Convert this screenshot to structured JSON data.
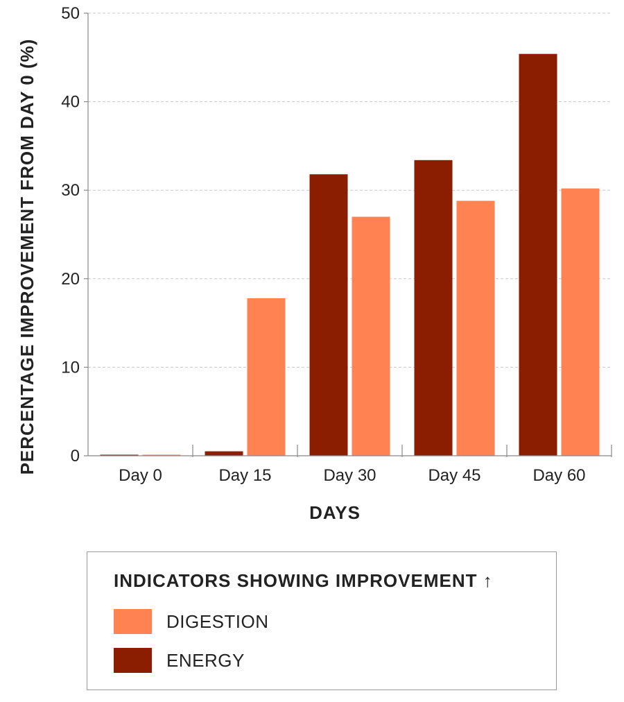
{
  "chart_data": {
    "type": "bar",
    "categories": [
      "Day 0",
      "Day 15",
      "Day 30",
      "Day 45",
      "Day 60"
    ],
    "series": [
      {
        "name": "ENERGY",
        "values": [
          0,
          0.5,
          31.8,
          33.4,
          45.4
        ],
        "color": "#8b1e00"
      },
      {
        "name": "DIGESTION",
        "values": [
          0,
          17.8,
          27.0,
          28.8,
          30.2
        ],
        "color": "#ff8352"
      }
    ],
    "xlabel": "DAYS",
    "ylabel": "PERCENTAGE IMPROVEMENT FROM DAY 0 (%)",
    "ylim": [
      0,
      50
    ],
    "yticks": [
      0,
      10,
      20,
      30,
      40,
      50
    ],
    "grid": true,
    "legend": {
      "title": "INDICATORS SHOWING IMPROVEMENT ↑",
      "placement": "bottom",
      "items": [
        {
          "label": "DIGESTION",
          "color": "#ff8352"
        },
        {
          "label": "ENERGY",
          "color": "#8b1e00"
        }
      ]
    }
  }
}
